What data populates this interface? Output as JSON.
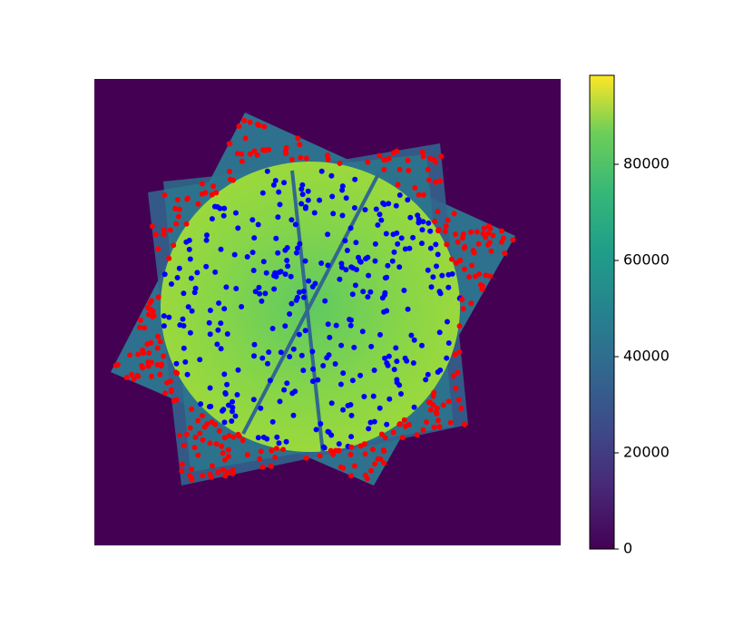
{
  "chart_data": {
    "type": "heatmap",
    "colorbar": {
      "clim": [
        0,
        98500
      ],
      "ticks": [
        0,
        20000,
        40000,
        60000,
        80000
      ]
    }
  }
}
